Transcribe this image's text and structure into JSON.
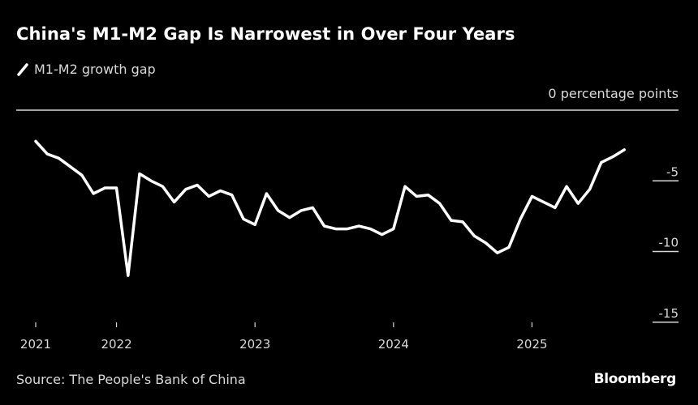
{
  "title": "China's M1-M2 Gap Is Narrowest in Over Four Years",
  "legend": [
    {
      "label": "M1-M2 growth gap",
      "color": "#ffffff",
      "icon": "line-swatch-icon"
    }
  ],
  "unit_label": "0 percentage points",
  "source": "Source: The People's Bank of China",
  "brand": "Bloomberg",
  "chart_data": {
    "type": "line",
    "title": "China's M1-M2 Gap Is Narrowest in Over Four Years",
    "xlabel": "",
    "ylabel": "percentage points",
    "ylim": [
      -15,
      0
    ],
    "y_ticks": [
      0,
      -5,
      -10,
      -15
    ],
    "y_tick_labels": [
      "0 percentage points",
      "-5",
      "-10",
      "-15"
    ],
    "x_tick_labels": [
      "2021",
      "2022",
      "2023",
      "2024",
      "2025"
    ],
    "x_tick_positions": [
      "2021-06",
      "2022-01",
      "2023-01",
      "2024-01",
      "2025-01"
    ],
    "grid": false,
    "legend_position": "top-left",
    "x": [
      "2021-06",
      "2021-07",
      "2021-08",
      "2021-09",
      "2021-10",
      "2021-11",
      "2021-12",
      "2022-01",
      "2022-02",
      "2022-03",
      "2022-04",
      "2022-05",
      "2022-06",
      "2022-07",
      "2022-08",
      "2022-09",
      "2022-10",
      "2022-11",
      "2022-12",
      "2023-01",
      "2023-02",
      "2023-03",
      "2023-04",
      "2023-05",
      "2023-06",
      "2023-07",
      "2023-08",
      "2023-09",
      "2023-10",
      "2023-11",
      "2023-12",
      "2024-01",
      "2024-02",
      "2024-03",
      "2024-04",
      "2024-05",
      "2024-06",
      "2024-07",
      "2024-08",
      "2024-09",
      "2024-10",
      "2024-11",
      "2024-12",
      "2025-01",
      "2025-02",
      "2025-03",
      "2025-04",
      "2025-05",
      "2025-06",
      "2025-07",
      "2025-08",
      "2025-09"
    ],
    "series": [
      {
        "name": "M1-M2 growth gap",
        "color": "#ffffff",
        "values": [
          -2.2,
          -3.1,
          -3.4,
          -4.0,
          -4.6,
          -5.9,
          -5.5,
          -5.5,
          -11.7,
          -4.5,
          -5.0,
          -5.4,
          -6.5,
          -5.6,
          -5.3,
          -6.1,
          -5.7,
          -6.0,
          -7.7,
          -8.1,
          -5.9,
          -7.1,
          -7.6,
          -7.1,
          -6.9,
          -8.2,
          -8.4,
          -8.4,
          -8.2,
          -8.4,
          -8.8,
          -8.4,
          -5.4,
          -6.1,
          -6.0,
          -6.6,
          -7.8,
          -7.9,
          -8.9,
          -9.4,
          -10.1,
          -9.7,
          -7.7,
          -6.1,
          -6.5,
          -6.9,
          -5.4,
          -6.6,
          -5.6,
          -3.7,
          -3.3,
          -2.8
        ]
      }
    ]
  }
}
